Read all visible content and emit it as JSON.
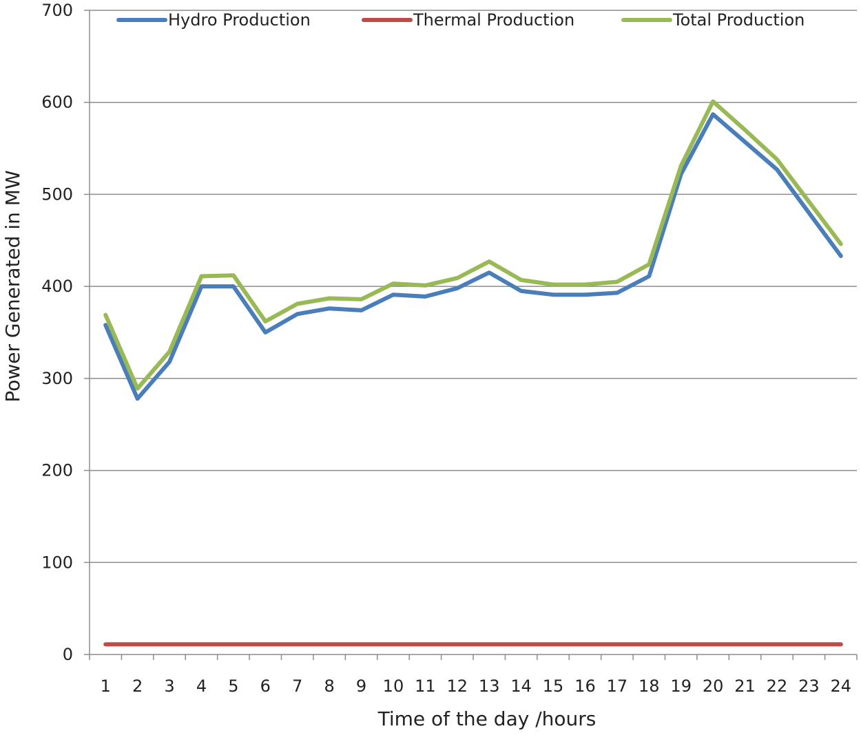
{
  "chart_data": {
    "type": "line",
    "title": "",
    "xlabel": "Time of the day /hours",
    "ylabel": "Power Generated in MW",
    "categories": [
      "1",
      "2",
      "3",
      "4",
      "5",
      "6",
      "7",
      "8",
      "9",
      "10",
      "11",
      "12",
      "13",
      "14",
      "15",
      "16",
      "17",
      "18",
      "19",
      "20",
      "21",
      "22",
      "23",
      "24"
    ],
    "ylim": [
      0,
      700
    ],
    "yticks": [
      0,
      100,
      200,
      300,
      400,
      500,
      600,
      700
    ],
    "grid": true,
    "legend": "top",
    "series": [
      {
        "name": "Hydro Production",
        "color": "#4a7ebb",
        "values": [
          358,
          278,
          318,
          400,
          400,
          350,
          370,
          376,
          374,
          391,
          389,
          398,
          415,
          395,
          391,
          391,
          393,
          411,
          522,
          587,
          557,
          527,
          480,
          433
        ]
      },
      {
        "name": "Thermal Production",
        "color": "#be4b48",
        "values": [
          11,
          11,
          11,
          11,
          11,
          11,
          11,
          11,
          11,
          11,
          11,
          11,
          11,
          11,
          11,
          11,
          11,
          11,
          11,
          11,
          11,
          11,
          11,
          11
        ]
      },
      {
        "name": "Total Production",
        "color": "#98b954",
        "values": [
          369,
          289,
          329,
          411,
          412,
          362,
          381,
          387,
          386,
          403,
          401,
          409,
          427,
          407,
          402,
          402,
          405,
          424,
          531,
          601,
          570,
          538,
          492,
          446
        ]
      }
    ]
  }
}
